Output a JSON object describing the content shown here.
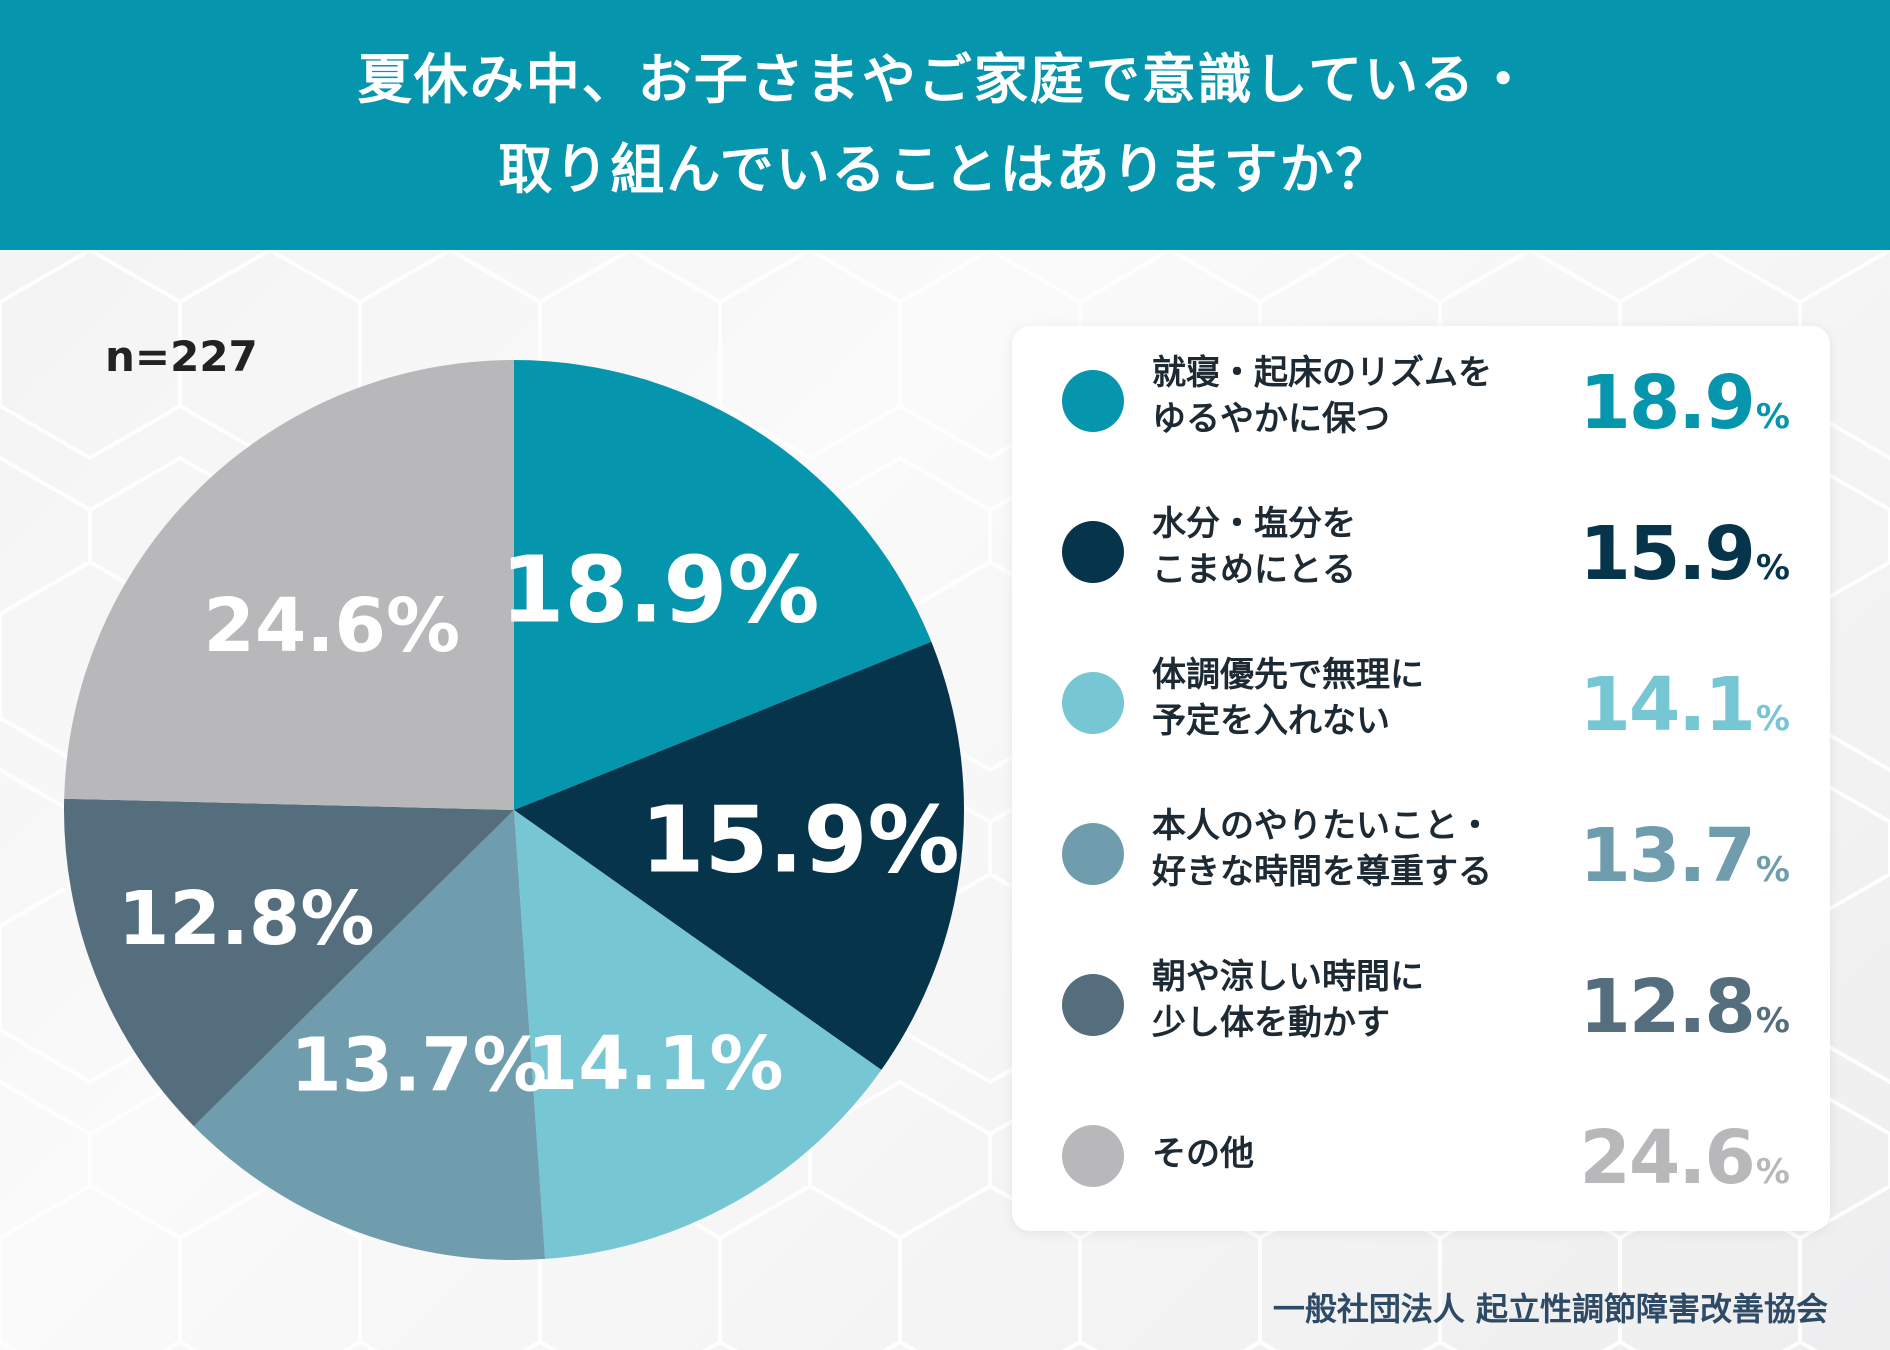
{
  "header": {
    "title_line1": "夏休み中、お子さまやご家庭で意識している・",
    "title_line2": "取り組んでいることはありますか？"
  },
  "sample_size": "n=227",
  "chart_data": {
    "type": "pie",
    "categories": [
      "就寝・起床のリズムをゆるやかに保つ",
      "水分・塩分をこまめにとる",
      "体調優先で無理に予定を入れない",
      "本人のやりたいこと・好きな時間を尊重する",
      "朝や涼しい時間に少し体を動かす",
      "その他"
    ],
    "values": [
      18.9,
      15.9,
      14.1,
      13.7,
      12.8,
      24.6
    ],
    "colors": [
      "#0596ae",
      "#06344a",
      "#76c6d3",
      "#709dad",
      "#556e7d",
      "#b8b8ba"
    ],
    "value_labels": [
      "18.9%",
      "15.9%",
      "14.1%",
      "13.7%",
      "12.8%",
      "24.6%"
    ],
    "legend_placement": "right"
  },
  "legend": [
    {
      "line1": "就寝・起床のリズムを",
      "line2": "ゆるやかに保つ",
      "value": "18.9",
      "unit": "%",
      "color": "#0596ae"
    },
    {
      "line1": "水分・塩分を",
      "line2": "こまめにとる",
      "value": "15.9",
      "unit": "%",
      "color": "#06344a"
    },
    {
      "line1": "体調優先で無理に",
      "line2": "予定を入れない",
      "value": "14.1",
      "unit": "%",
      "color": "#76c6d3"
    },
    {
      "line1": "本人のやりたいこと・",
      "line2": "好きな時間を尊重する",
      "value": "13.7",
      "unit": "%",
      "color": "#709dad"
    },
    {
      "line1": "朝や涼しい時間に",
      "line2": "少し体を動かす",
      "value": "12.8",
      "unit": "%",
      "color": "#556e7d"
    },
    {
      "line1": "その他",
      "line2": "",
      "value": "24.6",
      "unit": "%",
      "color": "#b8b8ba"
    }
  ],
  "footer": "一般社団法人 起立性調節障害改善協会"
}
